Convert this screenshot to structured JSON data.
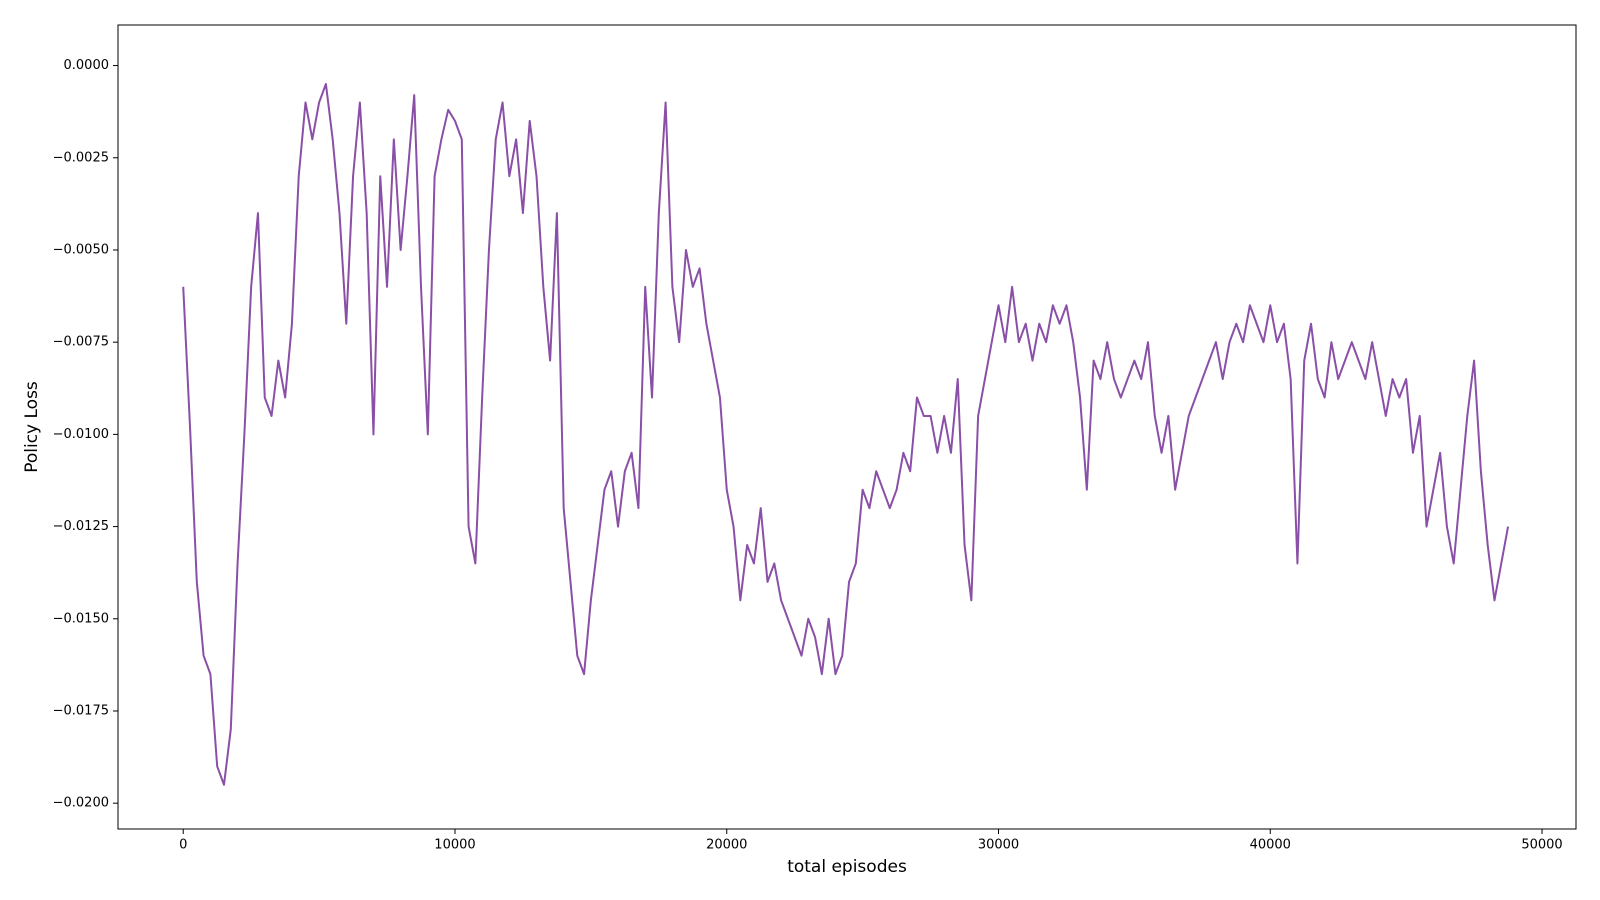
{
  "chart_data": {
    "type": "line",
    "x_label": "total episodes",
    "y_label": "Policy Loss",
    "x": [
      0,
      250,
      500,
      750,
      1000,
      1250,
      1500,
      1750,
      2000,
      2250,
      2500,
      2750,
      3000,
      3250,
      3500,
      3750,
      4000,
      4250,
      4500,
      4750,
      5000,
      5250,
      5500,
      5750,
      6000,
      6250,
      6500,
      6750,
      7000,
      7250,
      7500,
      7750,
      8000,
      8250,
      8500,
      8750,
      9000,
      9250,
      9500,
      9750,
      10000,
      10250,
      10500,
      10750,
      11000,
      11250,
      11500,
      11750,
      12000,
      12250,
      12500,
      12750,
      13000,
      13250,
      13500,
      13750,
      14000,
      14250,
      14500,
      14750,
      15000,
      15250,
      15500,
      15750,
      16000,
      16250,
      16500,
      16750,
      17000,
      17250,
      17500,
      17750,
      18000,
      18250,
      18500,
      18750,
      19000,
      19250,
      19500,
      19750,
      20000,
      20250,
      20500,
      20750,
      21000,
      21250,
      21500,
      21750,
      22000,
      22250,
      22500,
      22750,
      23000,
      23250,
      23500,
      23750,
      24000,
      24250,
      24500,
      24750,
      25000,
      25250,
      25500,
      25750,
      26000,
      26250,
      26500,
      26750,
      27000,
      27250,
      27500,
      27750,
      28000,
      28250,
      28500,
      28750,
      29000,
      29250,
      29500,
      29750,
      30000,
      30250,
      30500,
      30750,
      31000,
      31250,
      31500,
      31750,
      32000,
      32250,
      32500,
      32750,
      33000,
      33250,
      33500,
      33750,
      34000,
      34250,
      34500,
      34750,
      35000,
      35250,
      35500,
      35750,
      36000,
      36250,
      36500,
      36750,
      37000,
      37250,
      37500,
      37750,
      38000,
      38250,
      38500,
      38750,
      39000,
      39250,
      39500,
      39750,
      40000,
      40250,
      40500,
      40750,
      41000,
      41250,
      41500,
      41750,
      42000,
      42250,
      42500,
      42750,
      43000,
      43250,
      43500,
      43750,
      44000,
      44250,
      44500,
      44750,
      45000,
      45250,
      45500,
      45750,
      46000,
      46250,
      46500,
      46750,
      47000,
      47250,
      47500,
      47750,
      48000,
      48250,
      48500,
      48750
    ],
    "series": [
      {
        "color": "#8a4fa6",
        "values": [
          -0.006,
          -0.0098,
          -0.014,
          -0.016,
          -0.0165,
          -0.019,
          -0.0195,
          -0.018,
          -0.0135,
          -0.01,
          -0.006,
          -0.004,
          -0.009,
          -0.0095,
          -0.008,
          -0.009,
          -0.007,
          -0.003,
          -0.001,
          -0.002,
          -0.001,
          -0.0005,
          -0.002,
          -0.004,
          -0.007,
          -0.003,
          -0.001,
          -0.004,
          -0.01,
          -0.003,
          -0.006,
          -0.002,
          -0.005,
          -0.003,
          -0.0008,
          -0.006,
          -0.01,
          -0.003,
          -0.002,
          -0.0012,
          -0.0015,
          -0.002,
          -0.0125,
          -0.0135,
          -0.009,
          -0.005,
          -0.002,
          -0.001,
          -0.003,
          -0.002,
          -0.004,
          -0.0015,
          -0.003,
          -0.006,
          -0.008,
          -0.004,
          -0.012,
          -0.014,
          -0.016,
          -0.0165,
          -0.0145,
          -0.013,
          -0.0115,
          -0.011,
          -0.0125,
          -0.011,
          -0.0105,
          -0.012,
          -0.006,
          -0.009,
          -0.004,
          -0.001,
          -0.006,
          -0.0075,
          -0.005,
          -0.006,
          -0.0055,
          -0.007,
          -0.008,
          -0.009,
          -0.0115,
          -0.0125,
          -0.0145,
          -0.013,
          -0.0135,
          -0.012,
          -0.014,
          -0.0135,
          -0.0145,
          -0.015,
          -0.0155,
          -0.016,
          -0.015,
          -0.0155,
          -0.0165,
          -0.015,
          -0.0165,
          -0.016,
          -0.014,
          -0.0135,
          -0.0115,
          -0.012,
          -0.011,
          -0.0115,
          -0.012,
          -0.0115,
          -0.0105,
          -0.011,
          -0.009,
          -0.0095,
          -0.0095,
          -0.0105,
          -0.0095,
          -0.0105,
          -0.0085,
          -0.013,
          -0.0145,
          -0.0095,
          -0.0085,
          -0.0075,
          -0.0065,
          -0.0075,
          -0.006,
          -0.0075,
          -0.007,
          -0.008,
          -0.007,
          -0.0075,
          -0.0065,
          -0.007,
          -0.0065,
          -0.0075,
          -0.009,
          -0.0115,
          -0.008,
          -0.0085,
          -0.0075,
          -0.0085,
          -0.009,
          -0.0085,
          -0.008,
          -0.0085,
          -0.0075,
          -0.0095,
          -0.0105,
          -0.0095,
          -0.0115,
          -0.0105,
          -0.0095,
          -0.009,
          -0.0085,
          -0.008,
          -0.0075,
          -0.0085,
          -0.0075,
          -0.007,
          -0.0075,
          -0.0065,
          -0.007,
          -0.0075,
          -0.0065,
          -0.0075,
          -0.007,
          -0.0085,
          -0.0135,
          -0.008,
          -0.007,
          -0.0085,
          -0.009,
          -0.0075,
          -0.0085,
          -0.008,
          -0.0075,
          -0.008,
          -0.0085,
          -0.0075,
          -0.0085,
          -0.0095,
          -0.0085,
          -0.009,
          -0.0085,
          -0.0105,
          -0.0095,
          -0.0125,
          -0.0115,
          -0.0105,
          -0.0125,
          -0.0135,
          -0.0115,
          -0.0095,
          -0.008,
          -0.011,
          -0.013,
          -0.0145,
          -0.0135,
          -0.0125
        ]
      }
    ],
    "xlim": [
      -2400,
      51250
    ],
    "ylim": [
      -0.0207,
      0.0011
    ],
    "xticks": [
      0,
      10000,
      20000,
      30000,
      40000,
      50000
    ],
    "yticks": [
      {
        "value": 0,
        "label": "0.0000"
      },
      {
        "value": -0.0025,
        "label": "−0.0025"
      },
      {
        "value": -0.005,
        "label": "−0.0050"
      },
      {
        "value": -0.0075,
        "label": "−0.0075"
      },
      {
        "value": -0.01,
        "label": "−0.0100"
      },
      {
        "value": -0.0125,
        "label": "−0.0125"
      },
      {
        "value": -0.015,
        "label": "−0.0150"
      },
      {
        "value": -0.0175,
        "label": "−0.0175"
      },
      {
        "value": -0.02,
        "label": "−0.0200"
      }
    ],
    "grid": false
  }
}
